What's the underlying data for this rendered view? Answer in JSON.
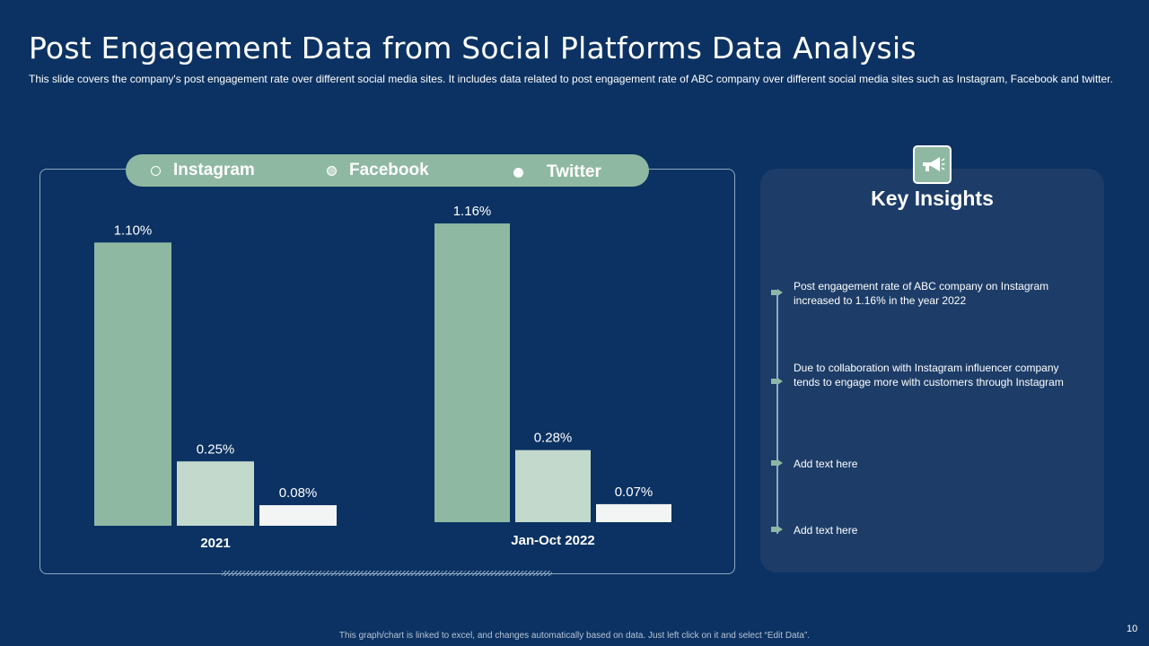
{
  "slide": {
    "title": "Post Engagement Data from Social Platforms Data Analysis",
    "subtitle": "This slide covers the company's post engagement rate over different social media sites. It includes data related to post engagement rate of ABC company over different social media sites such as Instagram, Facebook and twitter.",
    "footer": "This graph/chart is linked to excel, and changes automatically based on data. Just left click on it and select “Edit Data”.",
    "page_number": "10"
  },
  "legend": {
    "items": [
      {
        "label": "Instagram",
        "dot_color": "#8fb8a2"
      },
      {
        "label": "Facebook",
        "dot_color": "#c3d9cc"
      },
      {
        "label": "Twitter",
        "dot_color": "#ffffff"
      }
    ]
  },
  "insights": {
    "title": "Key Insights",
    "icon": "megaphone-icon",
    "items": [
      "Post engagement rate of ABC company on Instagram increased to 1.16% in the year 2022",
      "Due to collaboration with Instagram influencer company tends to engage more with customers through Instagram",
      "Add text here",
      "Add text here"
    ]
  },
  "chart_data": {
    "type": "bar",
    "title": "",
    "xlabel": "",
    "ylabel": "",
    "ylim": [
      0,
      1.2
    ],
    "grid": false,
    "legend_position": "top",
    "categories": [
      "2021",
      "Jan-Oct 2022"
    ],
    "series": [
      {
        "name": "Instagram",
        "values": [
          1.1,
          1.16
        ],
        "labels": [
          "1.10%",
          "1.16%"
        ],
        "color": "#8fb8a2"
      },
      {
        "name": "Facebook",
        "values": [
          0.25,
          0.28
        ],
        "labels": [
          "0.25%",
          "0.28%"
        ],
        "color": "#c3d9cc"
      },
      {
        "name": "Twitter",
        "values": [
          0.08,
          0.07
        ],
        "labels": [
          "0.08%",
          "0.07%"
        ],
        "color": "#f2f5f4"
      }
    ]
  }
}
